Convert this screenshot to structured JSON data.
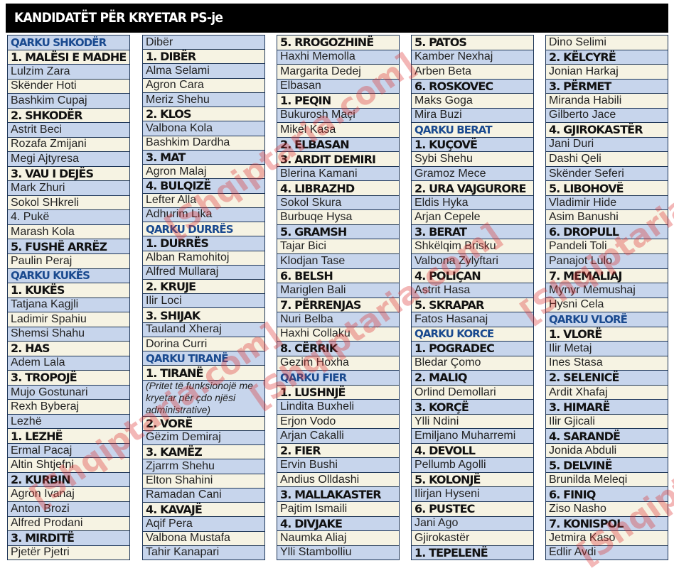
{
  "title": "KANDIDATËT PËR KRYETAR PS-je",
  "watermark": "[Shqiptaria.com]",
  "colors": {
    "row_blue": "#c7d5ec",
    "row_cream": "#f6f3e3",
    "qarku_text": "#1a4a8f",
    "border": "#1d3557"
  },
  "columns": [
    {
      "start": "blue",
      "rows": [
        {
          "type": "q",
          "text": "QARKU SHKODËR"
        },
        {
          "type": "h",
          "text": "1. MALËSI E MADHE"
        },
        {
          "type": "n",
          "text": "Lulzim Zara"
        },
        {
          "type": "n",
          "text": "Skënder Hoti"
        },
        {
          "type": "n",
          "text": "Bashkim Cupaj"
        },
        {
          "type": "h",
          "text": "2. SHKODËR"
        },
        {
          "type": "n",
          "text": "Astrit Beci"
        },
        {
          "type": "n",
          "text": "Rozafa Zmijani"
        },
        {
          "type": "n",
          "text": "Megi Ajtyresa"
        },
        {
          "type": "h",
          "text": "3. VAU I DEJËS"
        },
        {
          "type": "n",
          "text": "Mark Zhuri"
        },
        {
          "type": "n",
          "text": "Sokol SHkreli"
        },
        {
          "type": "n",
          "text": "4. Pukë"
        },
        {
          "type": "n",
          "text": "Marash Kola"
        },
        {
          "type": "h",
          "text": "5. FUSHË ARRËZ"
        },
        {
          "type": "n",
          "text": "Paulin Peraj"
        },
        {
          "type": "q",
          "text": "QARKU KUKËS"
        },
        {
          "type": "h",
          "text": "1. KUKËS"
        },
        {
          "type": "n",
          "text": "Tatjana Kagjli"
        },
        {
          "type": "n",
          "text": "Ladimir Spahiu"
        },
        {
          "type": "n",
          "text": "Shemsi Shahu"
        },
        {
          "type": "h",
          "text": "2. HAS"
        },
        {
          "type": "n",
          "text": "Adem Lala"
        },
        {
          "type": "h",
          "text": "3. TROPOJË"
        },
        {
          "type": "n",
          "text": "Mujo Gostunari"
        },
        {
          "type": "n",
          "text": "Rexh Byberaj"
        },
        {
          "type": "n",
          "text": "Lezhë"
        },
        {
          "type": "h",
          "text": "1. LEZHË"
        },
        {
          "type": "n",
          "text": "Ermal Pacaj"
        },
        {
          "type": "n",
          "text": "Altin Shtjefni"
        },
        {
          "type": "h",
          "text": "2. KURBIN"
        },
        {
          "type": "n",
          "text": "Agron Ivanaj"
        },
        {
          "type": "n",
          "text": "Anton Brozi"
        },
        {
          "type": "n",
          "text": "Alfred Prodani"
        },
        {
          "type": "h",
          "text": "3. MIRDITË"
        },
        {
          "type": "n",
          "text": "Pjetër Pjetri"
        }
      ]
    },
    {
      "start": "blue",
      "rows": [
        {
          "type": "n",
          "text": "Dibër"
        },
        {
          "type": "h",
          "text": "1. DIBËR"
        },
        {
          "type": "n",
          "text": "Alma Selami"
        },
        {
          "type": "n",
          "text": "Agron Cara"
        },
        {
          "type": "n",
          "text": "Meriz Shehu"
        },
        {
          "type": "h",
          "text": "2. KLOS"
        },
        {
          "type": "n",
          "text": "Valbona Kola"
        },
        {
          "type": "n",
          "text": "Bashkim Dardha"
        },
        {
          "type": "h",
          "text": "3. MAT"
        },
        {
          "type": "n",
          "text": "Agron Malaj"
        },
        {
          "type": "h",
          "text": "4. BULQIZË"
        },
        {
          "type": "n",
          "text": "Lefter Alla"
        },
        {
          "type": "n",
          "text": "Adhurim Lika"
        },
        {
          "type": "q",
          "text": "QARKU DURRËS"
        },
        {
          "type": "h",
          "text": "1. DURRËS"
        },
        {
          "type": "n",
          "text": "Alban Ramohitoj"
        },
        {
          "type": "n",
          "text": "Alfred Mullaraj"
        },
        {
          "type": "h",
          "text": "2. KRUJE"
        },
        {
          "type": "n",
          "text": "Ilir Loci"
        },
        {
          "type": "h",
          "text": "3. SHIJAK"
        },
        {
          "type": "n",
          "text": "Tauland Xheraj"
        },
        {
          "type": "n",
          "text": "Dorina Curri"
        },
        {
          "type": "q",
          "text": "QARKU TIRANË"
        },
        {
          "type": "h",
          "text": "1. TIRANË"
        },
        {
          "type": "i",
          "text": "(Pritet të funksionojë me kryetar për çdo njësi administrative)"
        },
        {
          "type": "h",
          "text": "2. VORË"
        },
        {
          "type": "n",
          "text": "Gëzim Demiraj"
        },
        {
          "type": "h",
          "text": "3. KAMËZ"
        },
        {
          "type": "n",
          "text": "Zjarrm Shehu"
        },
        {
          "type": "n",
          "text": "Elton Shahini"
        },
        {
          "type": "n",
          "text": "Ramadan Cani"
        },
        {
          "type": "h",
          "text": "4. KAVAJË"
        },
        {
          "type": "n",
          "text": "Aqif Pera"
        },
        {
          "type": "n",
          "text": "Valbona Mustafa"
        },
        {
          "type": "n",
          "text": "Tahir Kanapari"
        }
      ]
    },
    {
      "start": "cream",
      "rows": [
        {
          "type": "h",
          "text": "5. RROGOZHINË"
        },
        {
          "type": "n",
          "text": "Haxhi Memolla"
        },
        {
          "type": "n",
          "text": "Margarita Dedej"
        },
        {
          "type": "n",
          "text": "Elbasan"
        },
        {
          "type": "h",
          "text": "1. PEQIN"
        },
        {
          "type": "n",
          "text": "Bukurosh Maçi"
        },
        {
          "type": "n",
          "text": "Mikel Kasa"
        },
        {
          "type": "h",
          "text": "2. ELBASAN"
        },
        {
          "type": "h",
          "text": "3. ARDIT DEMIRI"
        },
        {
          "type": "n",
          "text": "Blerina Kamani"
        },
        {
          "type": "h",
          "text": "4. LIBRAZHD"
        },
        {
          "type": "n",
          "text": "Sokol Skura"
        },
        {
          "type": "n",
          "text": "Burbuqe Hysa"
        },
        {
          "type": "h",
          "text": "5. GRAMSH"
        },
        {
          "type": "n",
          "text": "Tajar Bici"
        },
        {
          "type": "n",
          "text": "Klodjan Tase"
        },
        {
          "type": "h",
          "text": "6. BELSH"
        },
        {
          "type": "n",
          "text": "Mariglen Bali"
        },
        {
          "type": "h",
          "text": "7. PËRRENJAS"
        },
        {
          "type": "n",
          "text": "Nuri Belba"
        },
        {
          "type": "n",
          "text": "Haxhi Collaku"
        },
        {
          "type": "h",
          "text": "8. CËRRIK"
        },
        {
          "type": "n",
          "text": "Gezim Hoxha"
        },
        {
          "type": "q",
          "text": "QARKU FIER"
        },
        {
          "type": "h",
          "text": "1. LUSHNJË"
        },
        {
          "type": "n",
          "text": "Lindita Buxheli"
        },
        {
          "type": "n",
          "text": "Erjon Vodo"
        },
        {
          "type": "n",
          "text": "Arjan Cakalli"
        },
        {
          "type": "h",
          "text": "2. FIER"
        },
        {
          "type": "n",
          "text": "Ervin Bushi"
        },
        {
          "type": "n",
          "text": "Andius Olldashi"
        },
        {
          "type": "h",
          "text": "3. MALLAKASTER"
        },
        {
          "type": "n",
          "text": "Pajtim Ismaili"
        },
        {
          "type": "h",
          "text": "4. DIVJAKE"
        },
        {
          "type": "n",
          "text": "Naumka Aliaj"
        },
        {
          "type": "n",
          "text": "Ylli Stambolliu"
        }
      ]
    },
    {
      "start": "cream",
      "rows": [
        {
          "type": "h",
          "text": "5. PATOS"
        },
        {
          "type": "n",
          "text": "Kamber Nexhaj"
        },
        {
          "type": "n",
          "text": "Arben Beta"
        },
        {
          "type": "h",
          "text": "6. ROSKOVEC"
        },
        {
          "type": "n",
          "text": "Maks Goga"
        },
        {
          "type": "n",
          "text": "Mira Buzi"
        },
        {
          "type": "q",
          "text": "QARKU BERAT"
        },
        {
          "type": "h",
          "text": "1. KUÇOVË"
        },
        {
          "type": "n",
          "text": "Sybi Shehu"
        },
        {
          "type": "n",
          "text": "Gramoz Mece"
        },
        {
          "type": "h",
          "text": "2. URA VAJGURORE"
        },
        {
          "type": "n",
          "text": "Eldis Hyka"
        },
        {
          "type": "n",
          "text": "Arjan Cepele"
        },
        {
          "type": "h",
          "text": "3. BERAT"
        },
        {
          "type": "n",
          "text": "Shkëlqim Brisku"
        },
        {
          "type": "n",
          "text": "Valbona Zylyftari"
        },
        {
          "type": "h",
          "text": "4. POLIÇAN"
        },
        {
          "type": "n",
          "text": "Astrit Hasa"
        },
        {
          "type": "h",
          "text": "5. SKRAPAR"
        },
        {
          "type": "n",
          "text": "Fatos Hasanaj"
        },
        {
          "type": "q",
          "text": "QARKU KORCE"
        },
        {
          "type": "h",
          "text": "1. POGRADEC"
        },
        {
          "type": "n",
          "text": "Bledar Çomo"
        },
        {
          "type": "h",
          "text": "2. MALIQ"
        },
        {
          "type": "n",
          "text": "Orlind Demollari"
        },
        {
          "type": "h",
          "text": "3. KORÇË"
        },
        {
          "type": "n",
          "text": "Ylli Ndini"
        },
        {
          "type": "n",
          "text": "Emiljano Muharremi"
        },
        {
          "type": "h",
          "text": "4. DEVOLL"
        },
        {
          "type": "n",
          "text": "Pellumb Agolli"
        },
        {
          "type": "h",
          "text": "5. KOLONJË"
        },
        {
          "type": "n",
          "text": "Ilirjan Hyseni"
        },
        {
          "type": "h",
          "text": "6. PUSTEC"
        },
        {
          "type": "n",
          "text": "Jani Ago"
        },
        {
          "type": "n",
          "text": "Gjirokastër"
        },
        {
          "type": "h",
          "text": "1. TEPELENË"
        }
      ]
    },
    {
      "start": "cream",
      "rows": [
        {
          "type": "n",
          "text": "Dino Selimi"
        },
        {
          "type": "h",
          "text": "2. KËLCYRË"
        },
        {
          "type": "n",
          "text": "Jonian Harkaj"
        },
        {
          "type": "h",
          "text": "3. PËRMET"
        },
        {
          "type": "n",
          "text": "Miranda Habili"
        },
        {
          "type": "n",
          "text": "Gilberto Jace"
        },
        {
          "type": "h",
          "text": "4. GJIROKASTËR"
        },
        {
          "type": "n",
          "text": "Jani Duri"
        },
        {
          "type": "n",
          "text": "Dashi Qeli"
        },
        {
          "type": "n",
          "text": "Skënder Seferi"
        },
        {
          "type": "h",
          "text": "5. LIBOHOVË"
        },
        {
          "type": "n",
          "text": "Vladimir Hide"
        },
        {
          "type": "n",
          "text": "Asim Banushi"
        },
        {
          "type": "h",
          "text": "6. DROPULL"
        },
        {
          "type": "n",
          "text": "Pandeli Toli"
        },
        {
          "type": "n",
          "text": "Panajot Lulo"
        },
        {
          "type": "h",
          "text": "7. MEMALIAJ"
        },
        {
          "type": "n",
          "text": "Mynyr Memushaj"
        },
        {
          "type": "n",
          "text": "Hysni Cela"
        },
        {
          "type": "q",
          "text": "QARKU VLORË"
        },
        {
          "type": "h",
          "text": "1. VLORË"
        },
        {
          "type": "n",
          "text": "Ilir Metaj"
        },
        {
          "type": "n",
          "text": "Ines Stasa"
        },
        {
          "type": "h",
          "text": "2. SELENICË"
        },
        {
          "type": "n",
          "text": "Ardit Xhafaj"
        },
        {
          "type": "h",
          "text": "3. HIMARË"
        },
        {
          "type": "n",
          "text": "Ilir Gjicali"
        },
        {
          "type": "h",
          "text": "4. SARANDË"
        },
        {
          "type": "n",
          "text": "Jonida Abduli"
        },
        {
          "type": "h",
          "text": "5. DELVINË"
        },
        {
          "type": "n",
          "text": "Brunilda Meleqi"
        },
        {
          "type": "h",
          "text": "6. FINIQ"
        },
        {
          "type": "n",
          "text": "Ziso Nasho"
        },
        {
          "type": "h",
          "text": "7. KONISPOL"
        },
        {
          "type": "n",
          "text": "Jetmira Kaso"
        },
        {
          "type": "n",
          "text": "Edlir Avdi"
        }
      ]
    }
  ]
}
